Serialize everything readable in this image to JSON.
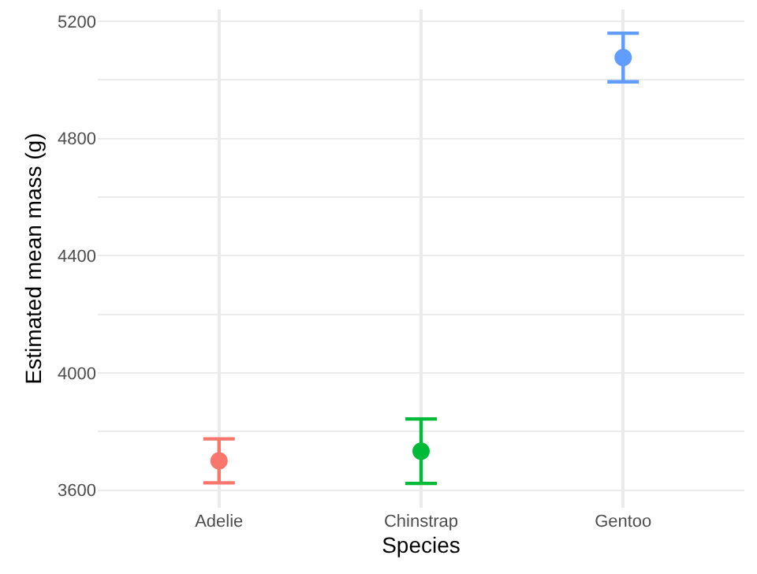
{
  "chart_data": {
    "type": "scatter",
    "xlabel": "Species",
    "ylabel": "Estimated mean mass (g)",
    "categories": [
      "Adelie",
      "Chinstrap",
      "Gentoo"
    ],
    "values": [
      3700,
      3733,
      5076
    ],
    "errors": [
      75,
      110,
      83
    ],
    "colors": [
      "#f8766d",
      "#00ba38",
      "#619cff"
    ],
    "ylim": [
      3540,
      5240
    ],
    "yticks": [
      3600,
      {
        "value": 3800,
        "label": null
      },
      4000,
      {
        "value": 4200,
        "label": null
      },
      4400,
      {
        "value": 4600,
        "label": null
      },
      4800,
      {
        "value": 5000,
        "label": null
      },
      5200
    ],
    "grid": true,
    "marker": "circle"
  }
}
